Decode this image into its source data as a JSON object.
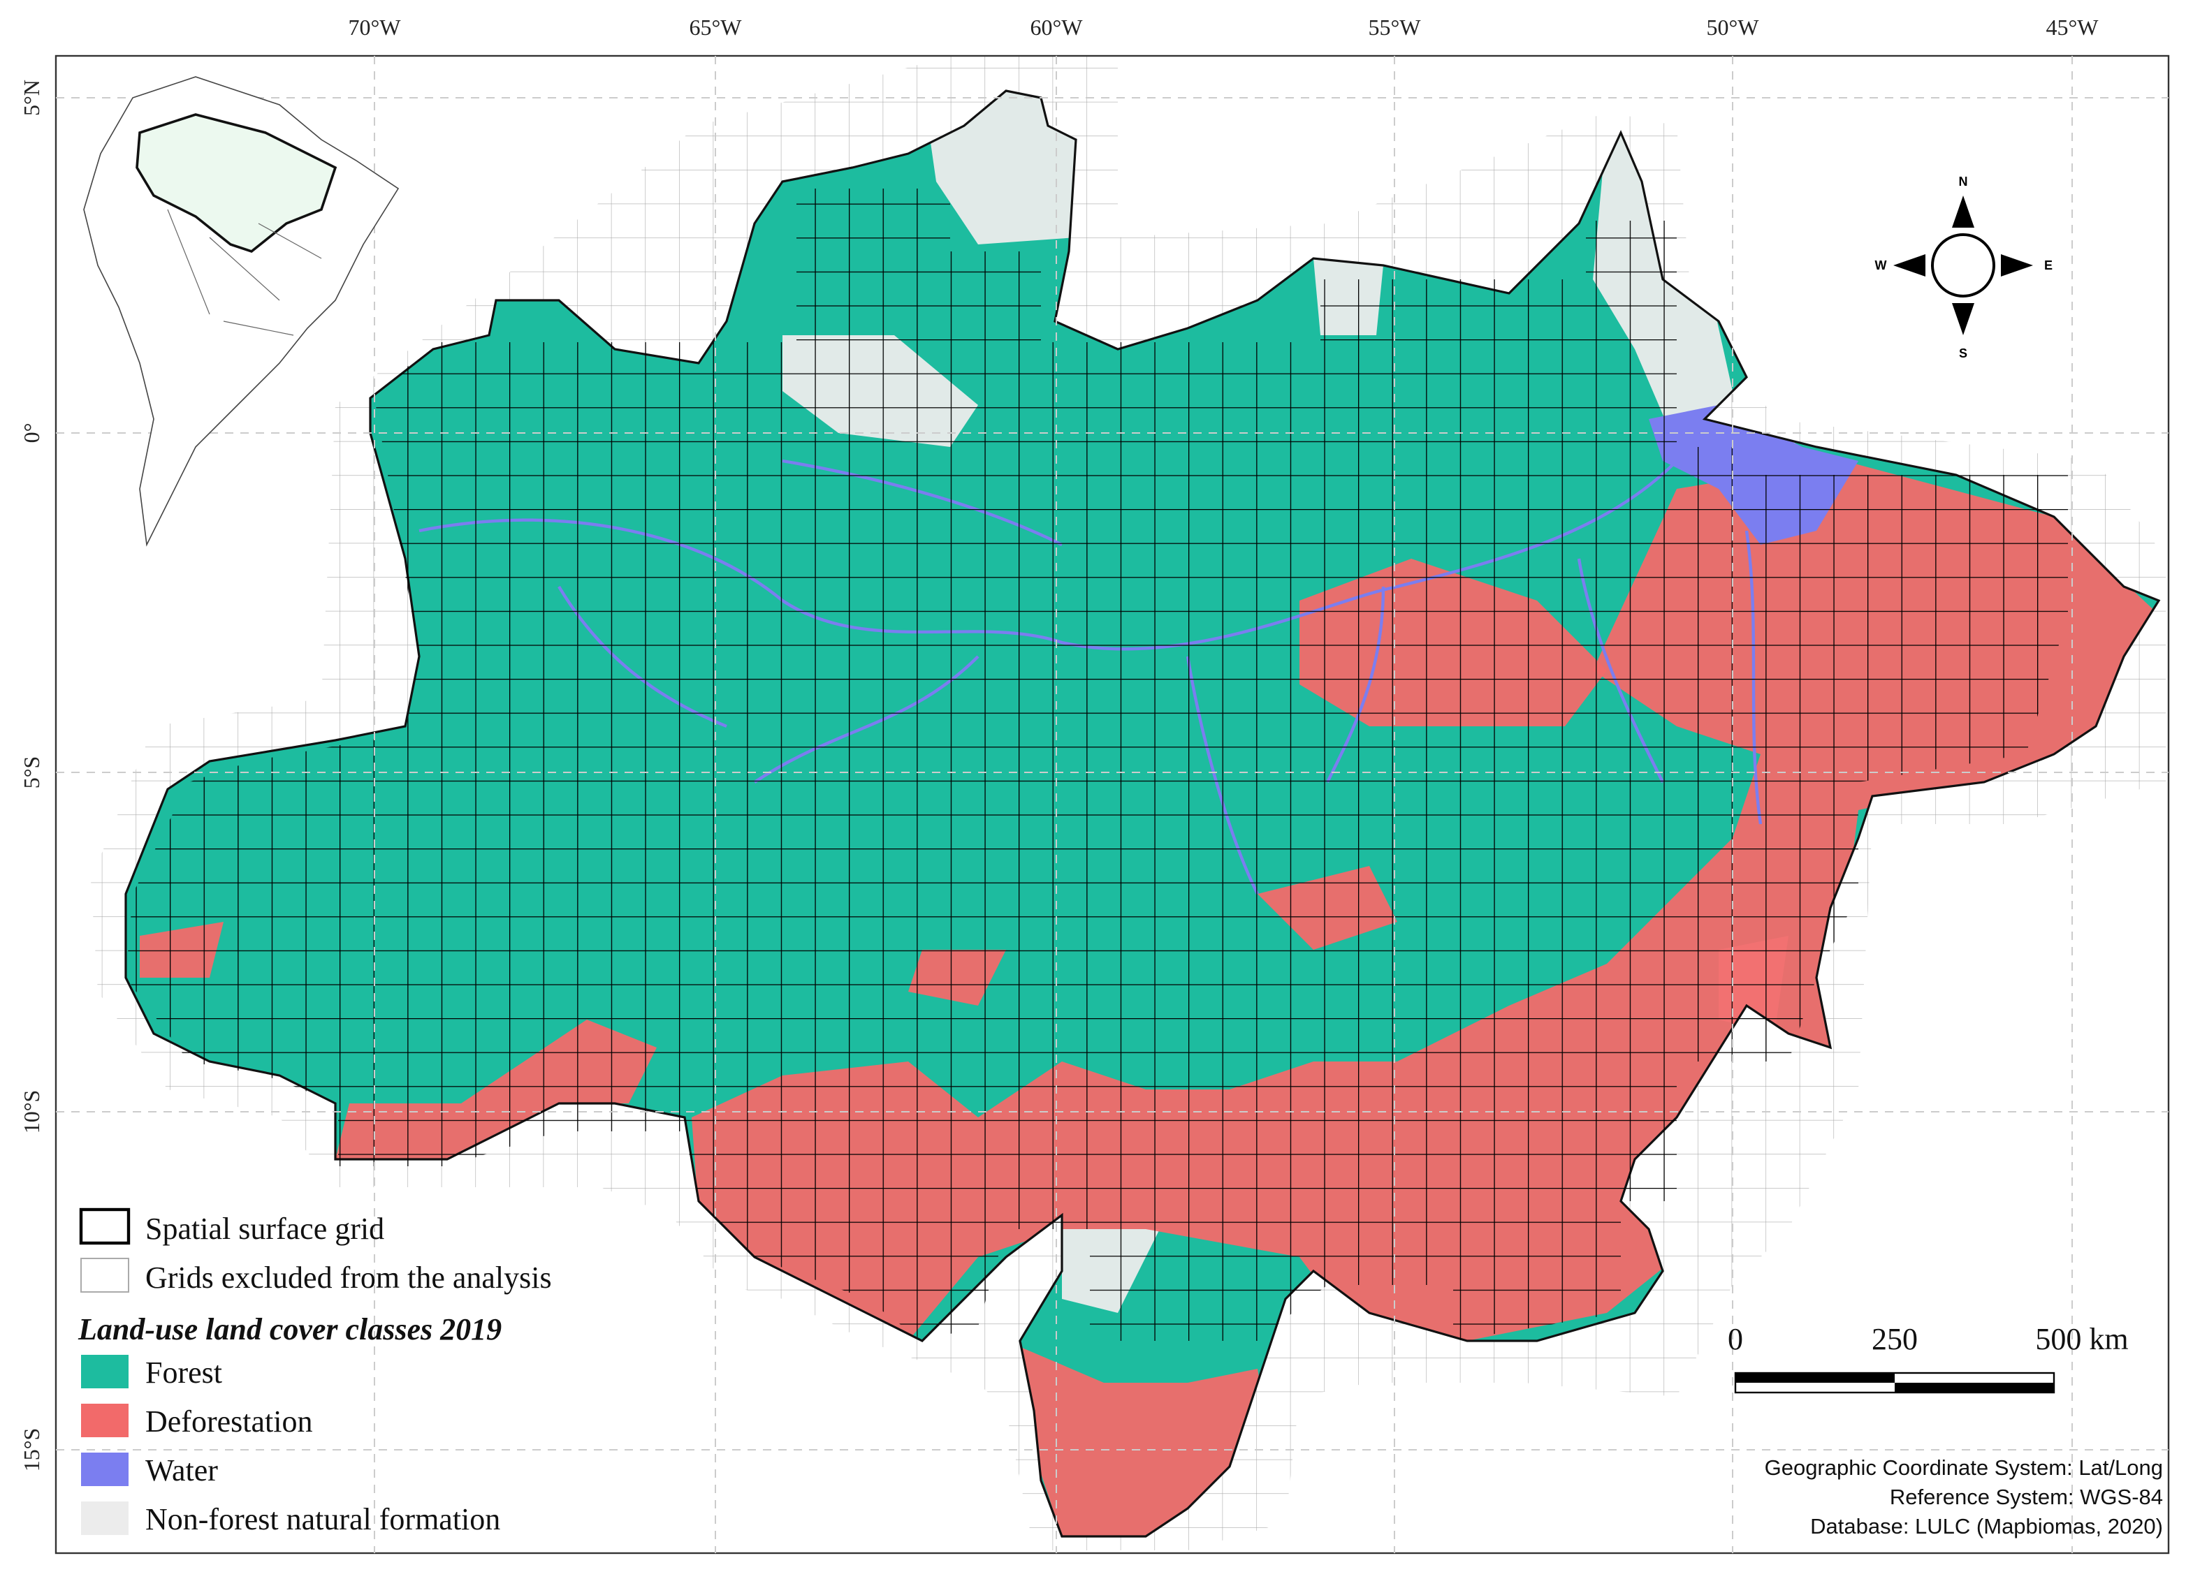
{
  "map": {
    "longitude_labels": [
      "70°W",
      "65°W",
      "60°W",
      "55°W",
      "50°W",
      "45°W"
    ],
    "latitude_labels": [
      "5°N",
      "0°",
      "5°S",
      "10°S",
      "15°S"
    ],
    "legend": {
      "grid_items": [
        "Spatial surface grid",
        "Grids excluded from the analysis"
      ],
      "title": "Land-use land cover classes 2019",
      "classes": [
        {
          "name": "Forest",
          "color": "#1dbc9f"
        },
        {
          "name": "Deforestation",
          "color": "#f26a6a"
        },
        {
          "name": "Water",
          "color": "#7b7ef0"
        },
        {
          "name": "Non-forest natural formation",
          "color": "#ececec"
        }
      ]
    },
    "scale_bar": {
      "labels": [
        "0",
        "250",
        "500 km"
      ]
    },
    "compass": {
      "north": "N",
      "east": "E",
      "south": "S",
      "west": "W"
    },
    "credits": [
      "Geographic Coordinate System: Lat/Long",
      "Reference System: WGS-84",
      "Database: LULC (Mapbiomas, 2020)"
    ]
  }
}
